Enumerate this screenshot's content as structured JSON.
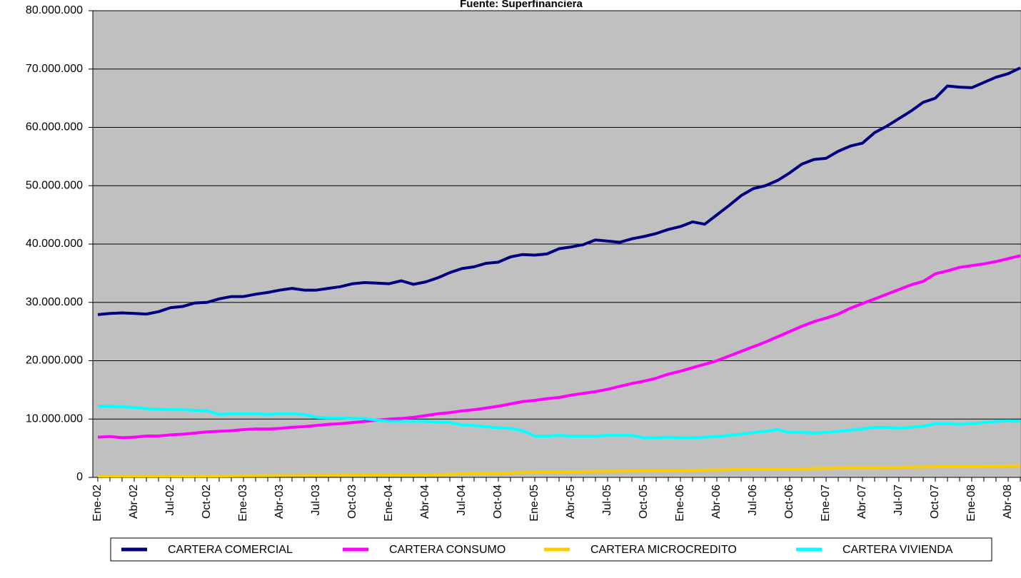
{
  "chart_data": {
    "type": "line",
    "title": "Fuente: Superfinanciera",
    "categories": [
      "Ene-02",
      null,
      null,
      "Abr-02",
      null,
      null,
      "Jul-02",
      null,
      null,
      "Oct-02",
      null,
      null,
      "Ene-03",
      null,
      null,
      "Abr-03",
      null,
      null,
      "Jul-03",
      null,
      null,
      "Oct-03",
      null,
      null,
      "Ene-04",
      null,
      null,
      "Abr-04",
      null,
      null,
      "Jul-04",
      null,
      null,
      "Oct-04",
      null,
      null,
      "Ene-05",
      null,
      null,
      "Abr-05",
      null,
      null,
      "Jul-05",
      null,
      null,
      "Oct-05",
      null,
      null,
      "Ene-06",
      null,
      null,
      "Abr-06",
      null,
      null,
      "Jul-06",
      null,
      null,
      "Oct-06",
      null,
      null,
      "Ene-07",
      null,
      null,
      "Abr-07",
      null,
      null,
      "Jul-07",
      null,
      null,
      "Oct-07",
      null,
      null,
      "Ene-08",
      null,
      null,
      "Abr-08",
      null
    ],
    "series": [
      {
        "name": "CARTERA COMERCIAL",
        "color": "#000080",
        "values": [
          27900000.0,
          28100000.0,
          28200000.0,
          28100000.0,
          28000000.0,
          28400000.0,
          29100000.0,
          29300000.0,
          29900000.0,
          30000000.0,
          30600000.0,
          31000000.0,
          31000000.0,
          31400000.0,
          31700000.0,
          32100000.0,
          32400000.0,
          32100000.0,
          32100000.0,
          32400000.0,
          32700000.0,
          33200000.0,
          33400000.0,
          33300000.0,
          33200000.0,
          33700000.0,
          33100000.0,
          33500000.0,
          34200000.0,
          35100000.0,
          35800000.0,
          36100000.0,
          36700000.0,
          36900000.0,
          37800000.0,
          38200000.0,
          38100000.0,
          38300000.0,
          39200000.0,
          39500000.0,
          39900000.0,
          40700000.0,
          40500000.0,
          40300000.0,
          40900000.0,
          41300000.0,
          41800000.0,
          42500000.0,
          43000000.0,
          43800000.0,
          43400000.0,
          45000000.0,
          46600000.0,
          48300000.0,
          49500000.0,
          50000000.0,
          50900000.0,
          52200000.0,
          53700000.0,
          54500000.0,
          54700000.0,
          55900000.0,
          56800000.0,
          57300000.0,
          59100000.0,
          60200000.0,
          61500000.0,
          62800000.0,
          64300000.0,
          65000000.0,
          67100000.0,
          66900000.0,
          66800000.0,
          67700000.0,
          68600000.0,
          69200000.0,
          70200000.0
        ]
      },
      {
        "name": "CARTERA CONSUMO",
        "color": "#ff00ff",
        "values": [
          6900000.0,
          7000000.0,
          6800000.0,
          6900000.0,
          7100000.0,
          7100000.0,
          7300000.0,
          7400000.0,
          7600000.0,
          7800000.0,
          7900000.0,
          8000000.0,
          8200000.0,
          8300000.0,
          8300000.0,
          8400000.0,
          8600000.0,
          8700000.0,
          8900000.0,
          9100000.0,
          9200000.0,
          9400000.0,
          9600000.0,
          9800000.0,
          10000000.0,
          10100000.0,
          10300000.0,
          10600000.0,
          10900000.0,
          11100000.0,
          11400000.0,
          11600000.0,
          11900000.0,
          12200000.0,
          12600000.0,
          13000000.0,
          13200000.0,
          13500000.0,
          13700000.0,
          14100000.0,
          14400000.0,
          14700000.0,
          15100000.0,
          15600000.0,
          16100000.0,
          16500000.0,
          17000000.0,
          17700000.0,
          18200000.0,
          18800000.0,
          19400000.0,
          20000000.0,
          20800000.0,
          21600000.0,
          22400000.0,
          23200000.0,
          24100000.0,
          25000000.0,
          25900000.0,
          26700000.0,
          27300000.0,
          28000000.0,
          29000000.0,
          29800000.0,
          30600000.0,
          31400000.0,
          32200000.0,
          33000000.0,
          33600000.0,
          34900000.0,
          35400000.0,
          36000000.0,
          36300000.0,
          36600000.0,
          37000000.0,
          37500000.0,
          38000000.0
        ]
      },
      {
        "name": "CARTERA MICROCREDITO",
        "color": "#ffcc00",
        "values": [
          150000.0,
          160000.0,
          170000.0,
          180000.0,
          190000.0,
          200000.0,
          210000.0,
          220000.0,
          230000.0,
          240000.0,
          250000.0,
          260000.0,
          270000.0,
          280000.0,
          290000.0,
          300000.0,
          310000.0,
          320000.0,
          330000.0,
          340000.0,
          350000.0,
          360000.0,
          370000.0,
          380000.0,
          400000.0,
          420000.0,
          440000.0,
          460000.0,
          500000.0,
          540000.0,
          580000.0,
          620000.0,
          660000.0,
          700000.0,
          760000.0,
          820000.0,
          860000.0,
          900000.0,
          930000.0,
          960000.0,
          990000.0,
          1020000.0,
          1040000.0,
          1060000.0,
          1080000.0,
          1100000.0,
          1130000.0,
          1160000.0,
          1190000.0,
          1220000.0,
          1250000.0,
          1280000.0,
          1310000.0,
          1340000.0,
          1370000.0,
          1400000.0,
          1430000.0,
          1460000.0,
          1490000.0,
          1520000.0,
          1550000.0,
          1580000.0,
          1610000.0,
          1640000.0,
          1670000.0,
          1700000.0,
          1730000.0,
          1760000.0,
          1790000.0,
          1820000.0,
          1850000.0,
          1880000.0,
          1900000.0,
          1920000.0,
          1950000.0,
          1980000.0,
          2020000.0
        ]
      },
      {
        "name": "CARTERA VIVIENDA",
        "color": "#00ffff",
        "values": [
          12200000.0,
          12200000.0,
          12100000.0,
          12000000.0,
          11800000.0,
          11700000.0,
          11600000.0,
          11600000.0,
          11500000.0,
          11400000.0,
          10800000.0,
          10900000.0,
          10900000.0,
          10900000.0,
          10800000.0,
          10900000.0,
          10900000.0,
          10800000.0,
          10300000.0,
          10200000.0,
          10200000.0,
          10100000.0,
          10100000.0,
          9800000.0,
          9600000.0,
          9600000.0,
          9600000.0,
          9600000.0,
          9500000.0,
          9400000.0,
          9000000.0,
          8900000.0,
          8700000.0,
          8500000.0,
          8400000.0,
          8000000.0,
          7100000.0,
          7100000.0,
          7200000.0,
          7100000.0,
          7100000.0,
          7100000.0,
          7200000.0,
          7200000.0,
          7200000.0,
          6800000.0,
          6800000.0,
          6900000.0,
          6800000.0,
          6800000.0,
          6900000.0,
          7000000.0,
          7200000.0,
          7400000.0,
          7700000.0,
          7900000.0,
          8200000.0,
          7700000.0,
          7700000.0,
          7600000.0,
          7700000.0,
          7900000.0,
          8100000.0,
          8300000.0,
          8600000.0,
          8600000.0,
          8400000.0,
          8600000.0,
          8800000.0,
          9200000.0,
          9200000.0,
          9100000.0,
          9200000.0,
          9400000.0,
          9600000.0,
          9700000.0,
          9600000.0
        ]
      }
    ],
    "ylim": [
      0,
      80000000
    ],
    "yticks": [
      0,
      {
        "value": 10000000,
        "label": "10.000.000"
      },
      {
        "value": 20000000,
        "label": "20.000.000"
      },
      {
        "value": 30000000,
        "label": "30.000.000"
      },
      {
        "value": 40000000,
        "label": "40.000.000"
      },
      {
        "value": 50000000,
        "label": "50.000.000"
      },
      {
        "value": 60000000,
        "label": "60.000.000"
      },
      {
        "value": 70000000,
        "label": "70.000.000"
      },
      {
        "value": 80000000,
        "label": "80.000.000"
      }
    ],
    "grid": true,
    "legend": "bottom"
  }
}
